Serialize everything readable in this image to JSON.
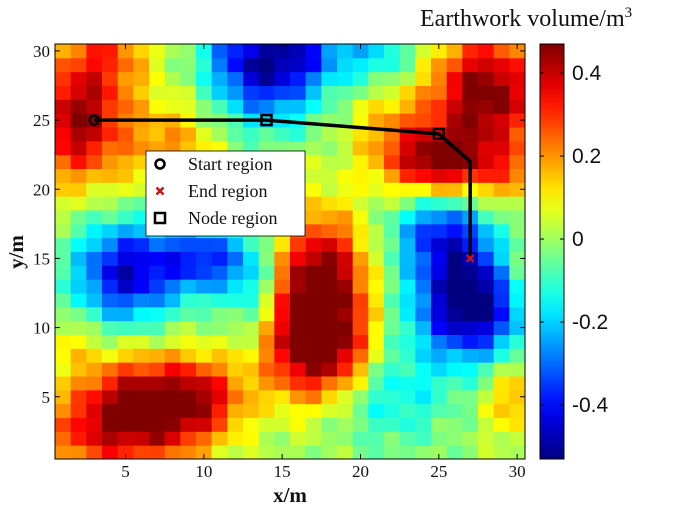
{
  "chart_data": {
    "type": "heatmap",
    "xlabel": "x/m",
    "ylabel": "y/m",
    "xlim": [
      0.5,
      30.5
    ],
    "ylim": [
      0.5,
      30.5
    ],
    "x_ticks": [
      "5",
      "10",
      "15",
      "20",
      "25",
      "30"
    ],
    "y_ticks": [
      "5",
      "10",
      "15",
      "20",
      "25",
      "30"
    ],
    "colorbar": {
      "title": "Earthwork volume/m",
      "title_superscript": "3",
      "range": [
        -0.53,
        0.47
      ],
      "ticks": [
        "-0.4",
        "-0.2",
        "0",
        "0.2",
        "0.4"
      ],
      "tick_values": [
        -0.4,
        -0.2,
        0,
        0.2,
        0.4
      ],
      "colormap": "jet"
    },
    "grid_size": [
      30,
      30
    ],
    "field_peaks": [
      {
        "x": 2,
        "y": 25,
        "amp": 0.45,
        "sx": 2.2,
        "sy": 3.2
      },
      {
        "x": 4,
        "y": 30,
        "amp": 0.2,
        "sx": 2.0,
        "sy": 2.0
      },
      {
        "x": 8,
        "y": 23,
        "amp": 0.2,
        "sx": 2.0,
        "sy": 2.5
      },
      {
        "x": 14,
        "y": 28,
        "amp": -0.38,
        "sx": 2.5,
        "sy": 2.5
      },
      {
        "x": 16,
        "y": 30,
        "amp": -0.25,
        "sx": 2.0,
        "sy": 1.5
      },
      {
        "x": 12,
        "y": 30,
        "amp": -0.15,
        "sx": 1.5,
        "sy": 1.5
      },
      {
        "x": 21,
        "y": 30,
        "amp": -0.18,
        "sx": 2.0,
        "sy": 2.0
      },
      {
        "x": 28,
        "y": 27,
        "amp": 0.5,
        "sx": 2.5,
        "sy": 3.0
      },
      {
        "x": 25,
        "y": 22,
        "amp": 0.45,
        "sx": 2.5,
        "sy": 1.7
      },
      {
        "x": 22,
        "y": 25,
        "amp": 0.15,
        "sx": 2.0,
        "sy": 2.0
      },
      {
        "x": 5,
        "y": 14,
        "amp": -0.45,
        "sx": 2.3,
        "sy": 2.6
      },
      {
        "x": 10,
        "y": 15,
        "amp": -0.35,
        "sx": 2.0,
        "sy": 1.8
      },
      {
        "x": 13,
        "y": 13,
        "amp": -0.15,
        "sx": 1.2,
        "sy": 2.5
      },
      {
        "x": 17.5,
        "y": 12.5,
        "amp": 0.58,
        "sx": 2.0,
        "sy": 3.8
      },
      {
        "x": 16,
        "y": 8,
        "amp": 0.25,
        "sx": 2.0,
        "sy": 2.5
      },
      {
        "x": 19,
        "y": 8,
        "amp": 0.15,
        "sx": 1.5,
        "sy": 2.0
      },
      {
        "x": 27,
        "y": 12,
        "amp": -0.6,
        "sx": 2.5,
        "sy": 3.0
      },
      {
        "x": 25,
        "y": 17,
        "amp": -0.3,
        "sx": 2.0,
        "sy": 2.0
      },
      {
        "x": 6,
        "y": 4,
        "amp": 0.52,
        "sx": 3.0,
        "sy": 2.7
      },
      {
        "x": 10,
        "y": 5,
        "amp": 0.25,
        "sx": 2.0,
        "sy": 2.0
      },
      {
        "x": 2,
        "y": 2,
        "amp": 0.15,
        "sx": 2.0,
        "sy": 2.0
      },
      {
        "x": 22,
        "y": 5,
        "amp": -0.15,
        "sx": 2.5,
        "sy": 2.5
      },
      {
        "x": 30,
        "y": 5,
        "amp": 0.2,
        "sx": 1.5,
        "sy": 2.0
      },
      {
        "x": 30,
        "y": 14,
        "amp": 0.15,
        "sx": 1.2,
        "sy": 2.0
      },
      {
        "x": 30,
        "y": 21,
        "amp": 0.15,
        "sx": 1.5,
        "sy": 1.5
      },
      {
        "x": 1,
        "y": 9,
        "amp": 0.1,
        "sx": 1.5,
        "sy": 1.5
      }
    ],
    "path": {
      "x": [
        3,
        14,
        25,
        27,
        27
      ],
      "y": [
        25,
        25,
        24,
        22,
        15
      ],
      "color": "#000000"
    },
    "markers": [
      {
        "label": "Start region",
        "x": 3,
        "y": 25,
        "symbol": "circle",
        "color": "#000000"
      },
      {
        "label": "Node region",
        "x": 14,
        "y": 25,
        "symbol": "square",
        "color": "#000000"
      },
      {
        "label": "Node region",
        "x": 25,
        "y": 24,
        "symbol": "square",
        "color": "#000000"
      },
      {
        "label": "End region",
        "x": 27,
        "y": 15,
        "symbol": "x-mark",
        "color": "#cc1111"
      }
    ],
    "legend": {
      "position": "upper-left",
      "entries": [
        {
          "label": "Start region",
          "symbol": "circle",
          "color": "#000000"
        },
        {
          "label": "End region",
          "symbol": "x-mark",
          "color": "#cc1111"
        },
        {
          "label": "Node region",
          "symbol": "square",
          "color": "#000000"
        }
      ]
    }
  }
}
